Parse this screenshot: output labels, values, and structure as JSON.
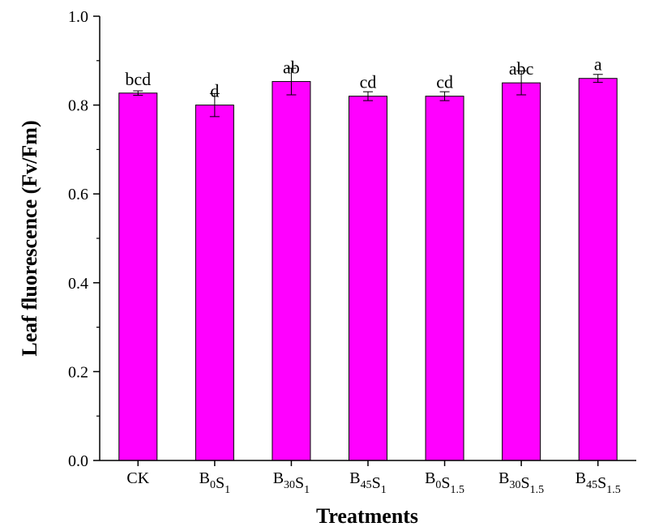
{
  "chart_data": {
    "type": "bar",
    "title": "",
    "xlabel": "Treatments",
    "ylabel": "Leaf fluorescence (Fv/Fm)",
    "ylim": [
      0,
      1.0
    ],
    "yticks": [
      "0.0",
      "0.2",
      "0.4",
      "0.6",
      "0.8",
      "1.0"
    ],
    "grid": false,
    "legend": "none",
    "categories": [
      {
        "label": "CK",
        "base": "CK",
        "parts": []
      },
      {
        "label": "B0S1",
        "base": "",
        "parts": [
          {
            "t": "B",
            "s": "0"
          },
          {
            "t": "S",
            "s": "1"
          }
        ]
      },
      {
        "label": "B30S1",
        "base": "",
        "parts": [
          {
            "t": "B",
            "s": "30"
          },
          {
            "t": "S",
            "s": "1"
          }
        ]
      },
      {
        "label": "B45S1",
        "base": "",
        "parts": [
          {
            "t": "B",
            "s": "45"
          },
          {
            "t": "S",
            "s": "1"
          }
        ]
      },
      {
        "label": "B0S1.5",
        "base": "",
        "parts": [
          {
            "t": "B",
            "s": "0"
          },
          {
            "t": "S",
            "s": "1.5"
          }
        ]
      },
      {
        "label": "B30S1.5",
        "base": "",
        "parts": [
          {
            "t": "B",
            "s": "30"
          },
          {
            "t": "S",
            "s": "1.5"
          }
        ]
      },
      {
        "label": "B45S1.5",
        "base": "",
        "parts": [
          {
            "t": "B",
            "s": "45"
          },
          {
            "t": "S",
            "s": "1.5"
          }
        ]
      }
    ],
    "values": [
      0.827,
      0.8,
      0.853,
      0.82,
      0.82,
      0.85,
      0.86
    ],
    "errors": [
      0.005,
      0.026,
      0.03,
      0.01,
      0.01,
      0.027,
      0.009
    ],
    "significance": [
      "bcd",
      "d",
      "ab",
      "cd",
      "cd",
      "abc",
      "a"
    ],
    "bar_color": "#ff00ff"
  }
}
